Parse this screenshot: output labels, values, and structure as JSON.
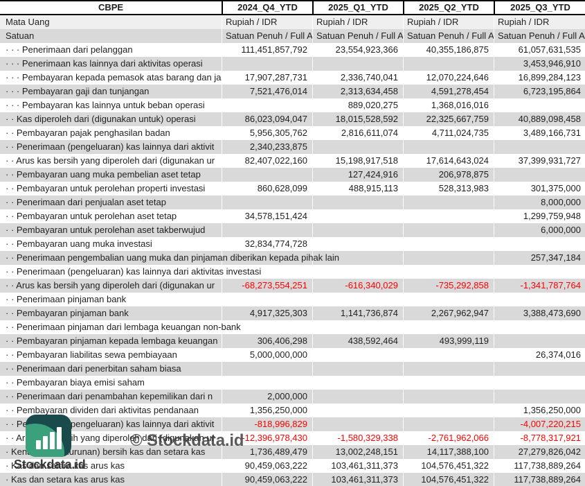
{
  "table": {
    "ticker": "CBPE",
    "periods": [
      "2024_Q4_YTD",
      "2025_Q1_YTD",
      "2025_Q2_YTD",
      "2025_Q3_YTD"
    ],
    "currency_label": "Mata Uang",
    "currency_values": [
      "Rupiah / IDR",
      "Rupiah / IDR",
      "Rupiah / IDR",
      "Rupiah / IDR"
    ],
    "unit_label": "Satuan",
    "unit_values": [
      "Satuan Penuh / Full A",
      "Satuan Penuh / Full A",
      "Satuan Penuh / Full A",
      "Satuan Penuh / Full A"
    ],
    "rows": [
      {
        "label": "· · · Penerimaan dari pelanggan",
        "clip": false,
        "values": [
          "111,451,857,792",
          "23,554,923,366",
          "40,355,186,875",
          "61,057,631,535"
        ]
      },
      {
        "label": "· · · Penerimaan kas lainnya dari aktivitas operasi",
        "clip": false,
        "values": [
          "",
          "",
          "",
          "3,453,946,910"
        ]
      },
      {
        "label": "· · · Pembayaran kepada pemasok atas barang dan ja",
        "clip": true,
        "values": [
          "17,907,287,731",
          "2,336,740,041",
          "12,070,224,646",
          "16,899,284,123"
        ]
      },
      {
        "label": "· · · Pembayaran gaji dan tunjangan",
        "clip": false,
        "values": [
          "7,521,476,014",
          "2,313,634,458",
          "4,591,278,454",
          "6,723,195,864"
        ]
      },
      {
        "label": "· · · Pembayaran kas lainnya untuk beban operasi",
        "clip": false,
        "values": [
          "",
          "889,020,275",
          "1,368,016,016",
          ""
        ]
      },
      {
        "label": "· · Kas diperoleh dari (digunakan untuk) operasi",
        "clip": false,
        "values": [
          "86,023,094,047",
          "18,015,528,592",
          "22,325,667,759",
          "40,889,098,458"
        ]
      },
      {
        "label": "· · Pembayaran pajak penghasilan badan",
        "clip": false,
        "values": [
          "5,956,305,762",
          "2,816,611,074",
          "4,711,024,735",
          "3,489,166,731"
        ]
      },
      {
        "label": "· · Penerimaan (pengeluaran) kas lainnya dari aktivit",
        "clip": true,
        "values": [
          "2,340,233,875",
          "",
          "",
          ""
        ]
      },
      {
        "label": "· · Arus kas bersih yang diperoleh dari (digunakan ur",
        "clip": true,
        "values": [
          "82,407,022,160",
          "15,198,917,518",
          "17,614,643,024",
          "37,399,931,727"
        ]
      },
      {
        "label": "· · Pembayaran uang muka pembelian aset tetap",
        "clip": false,
        "values": [
          "",
          "127,424,916",
          "206,978,875",
          ""
        ]
      },
      {
        "label": "· · Pembayaran untuk perolehan properti investasi",
        "clip": false,
        "values": [
          "860,628,099",
          "488,915,113",
          "528,313,983",
          "301,375,000"
        ]
      },
      {
        "label": "· · Penerimaan dari penjualan aset tetap",
        "clip": false,
        "values": [
          "",
          "",
          "",
          "8,000,000"
        ]
      },
      {
        "label": "· · Pembayaran untuk perolehan aset tetap",
        "clip": false,
        "values": [
          "34,578,151,424",
          "",
          "",
          "1,299,759,948"
        ]
      },
      {
        "label": "· · Pembayaran untuk perolehan aset takberwujud",
        "clip": false,
        "values": [
          "",
          "",
          "",
          "6,000,000"
        ]
      },
      {
        "label": "· · Pembayaran uang muka investasi",
        "clip": false,
        "values": [
          "32,834,774,728",
          "",
          "",
          ""
        ]
      },
      {
        "label": "· · Penerimaan pengembalian uang muka dan pinjaman diberikan kepada pihak lain",
        "clip": false,
        "values": [
          "",
          "",
          "",
          "257,347,184"
        ]
      },
      {
        "label": "· · Penerimaan (pengeluaran) kas lainnya dari aktivitas investasi",
        "clip": false,
        "values": [
          "",
          "",
          "",
          ""
        ]
      },
      {
        "label": "· · Arus kas bersih yang diperoleh dari (digunakan ur",
        "clip": true,
        "values": [
          "-68,273,554,251",
          "-616,340,029",
          "-735,292,858",
          "-1,341,787,764"
        ]
      },
      {
        "label": "· · Penerimaan pinjaman bank",
        "clip": false,
        "values": [
          "",
          "",
          "",
          ""
        ]
      },
      {
        "label": "· · Pembayaran pinjaman bank",
        "clip": false,
        "values": [
          "4,917,325,303",
          "1,141,736,874",
          "2,267,962,947",
          "3,388,473,690"
        ]
      },
      {
        "label": "· · Penerimaan pinjaman dari lembaga keuangan non-bank",
        "clip": false,
        "values": [
          "",
          "",
          "",
          ""
        ]
      },
      {
        "label": "· · Pembayaran pinjaman kepada lembaga keuangan",
        "clip": true,
        "values": [
          "306,406,298",
          "438,592,464",
          "493,999,119",
          ""
        ]
      },
      {
        "label": "· · Pembayaran liabilitas sewa pembiayaan",
        "clip": false,
        "values": [
          "5,000,000,000",
          "",
          "",
          "26,374,016"
        ]
      },
      {
        "label": "· · Penerimaan dari penerbitan saham biasa",
        "clip": false,
        "values": [
          "",
          "",
          "",
          ""
        ]
      },
      {
        "label": "· · Pembayaran biaya emisi saham",
        "clip": false,
        "values": [
          "",
          "",
          "",
          ""
        ]
      },
      {
        "label": "· · Penerimaan dari penambahan kepemilikan dari n",
        "clip": true,
        "values": [
          "2,000,000",
          "",
          "",
          ""
        ]
      },
      {
        "label": "· · Pembayaran dividen dari aktivitas pendanaan",
        "clip": false,
        "values": [
          "1,356,250,000",
          "",
          "",
          "1,356,250,000"
        ]
      },
      {
        "label": "· · Penerimaan (pengeluaran) kas lainnya dari aktivit",
        "clip": true,
        "values": [
          "-818,996,829",
          "",
          "",
          "-4,007,220,215"
        ]
      },
      {
        "label": "· · Arus kas bersih yang diperoleh dari (digunakan ur",
        "clip": true,
        "values": [
          "-12,396,978,430",
          "-1,580,329,338",
          "-2,761,962,066",
          "-8,778,317,921"
        ]
      },
      {
        "label": "· Kenaikan (penurunan) bersih kas dan setara kas",
        "clip": false,
        "values": [
          "1,736,489,479",
          "13,002,248,151",
          "14,117,388,100",
          "27,279,826,042"
        ]
      },
      {
        "label": "· Kas dan setara kas arus kas",
        "clip": false,
        "values": [
          "90,459,063,222",
          "103,461,311,373",
          "104,576,451,322",
          "117,738,889,264"
        ]
      },
      {
        "label": "· Kas dan setara kas arus kas",
        "clip": false,
        "values": [
          "90,459,063,222",
          "103,461,311,373",
          "104,576,451,322",
          "117,738,889,264"
        ]
      }
    ]
  },
  "watermark": {
    "text": "© Stockdata.id"
  },
  "brand": {
    "name": "Stockdata.id",
    "icon": "bar-chart"
  },
  "colors": {
    "negative": "#ff0000",
    "row_gray": "#d9d9d9",
    "currency_row": "#efefef",
    "logo_teal": "#1a4a4c",
    "logo_green": "#3aa17c"
  }
}
